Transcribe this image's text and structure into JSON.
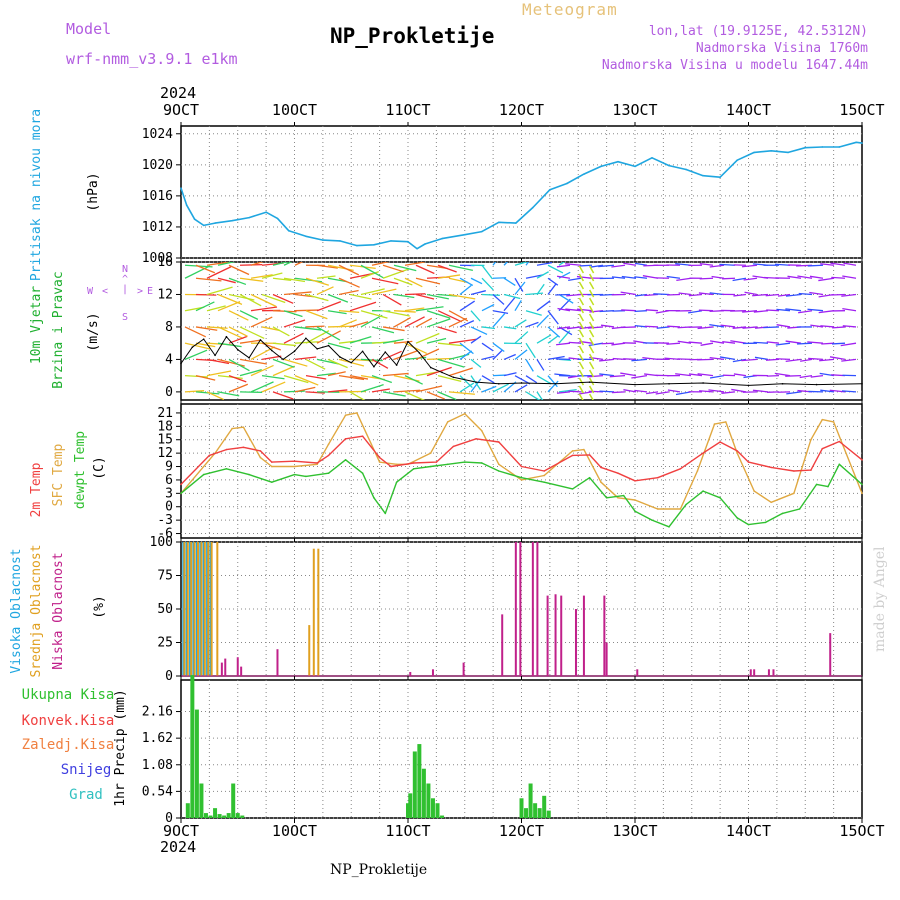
{
  "header": {
    "model_label": "Model",
    "model_name": "wrf-nmm_v3.9.1 e1km",
    "meteogram_label": "Meteogram",
    "station": "NP_Prokletije",
    "lonlat": "lon,lat (19.9125E, 42.5312N)",
    "elevation": "Nadmorska Visina 1760m",
    "model_elevation": "Nadmorska Visina u modelu 1647.44m"
  },
  "footer": {
    "station": "NP_Prokletije",
    "credit": "made by Angel"
  },
  "colors": {
    "pressure": "#1fa6e0",
    "temp": "#f04040",
    "sfc_temp": "#e0a840",
    "dewpt": "#30c030",
    "high_cloud": "#1fa6e0",
    "mid_cloud": "#e0a020",
    "low_cloud": "#c0208a",
    "precip_total": "#30c030",
    "conv": "#f04040",
    "frozen": "#f08040",
    "snow": "#4040e0",
    "graupel": "#30c0c0",
    "wind_label": "#20b030",
    "axis": "#000000",
    "wind_dir_label": "#b25ce0"
  },
  "time_axis": {
    "year": "2024",
    "top_ticks": [
      "9OCT",
      "10OCT",
      "11OCT",
      "12OCT",
      "13OCT",
      "14OCT",
      "15OCT"
    ],
    "bottom_ticks": [
      "9OCT",
      "10OCT",
      "11OCT",
      "12OCT",
      "13OCT",
      "14OCT",
      "15OCT"
    ]
  },
  "panels": {
    "pressure": {
      "label": "Pritisak na nivou mora",
      "unit": "(hPa)"
    },
    "wind": {
      "label1": "10m Vjetar",
      "label2": "Brzina i Pravac",
      "unit": "(m/s)",
      "compass": [
        "N",
        "^",
        "|",
        "<",
        "W",
        "E",
        ">",
        "S"
      ]
    },
    "temp": {
      "label_temp": "2m Temp",
      "label_sfc": "SFC Temp",
      "label_dewpt": "dewpt Temp",
      "unit": "(C)"
    },
    "cloud": {
      "label_high": "Visoka Oblacnost",
      "label_mid": "Srednja Oblacnost",
      "label_low": "Niska Oblacnost",
      "unit": "(%)"
    },
    "precip": {
      "label_total": "Ukupna Kisa",
      "label_conv": "Konvek.Kisa",
      "label_frozen": "Zaledj.Kisa",
      "label_snow": "Snijeg",
      "label_grad": "Grad",
      "axis_label": "1hr Precip (mm)"
    }
  },
  "chart_data": [
    {
      "type": "line",
      "title": "Pritisak na nivou mora",
      "ylabel": "(hPa)",
      "ylim": [
        1008,
        1025
      ],
      "yticks": [
        "1008",
        "1012",
        "1016",
        "1020",
        "1024"
      ],
      "x_unit": "days after 9 OCT 2024 00UTC",
      "series": [
        {
          "name": "pressure",
          "x": [
            0,
            0.05,
            0.12,
            0.2,
            0.3,
            0.45,
            0.6,
            0.75,
            0.85,
            0.95,
            1.1,
            1.25,
            1.4,
            1.55,
            1.7,
            1.85,
            2.0,
            2.08,
            2.15,
            2.3,
            2.5,
            2.65,
            2.8,
            2.95,
            3.1,
            3.25,
            3.4,
            3.55,
            3.7,
            3.85,
            4.0,
            4.15,
            4.3,
            4.45,
            4.6,
            4.75,
            4.9,
            5.05,
            5.2,
            5.35,
            5.5,
            5.65,
            5.8,
            5.95,
            6.0
          ],
          "y": [
            1017,
            1014.8,
            1013,
            1012.2,
            1012.5,
            1012.8,
            1013.2,
            1013.9,
            1013.1,
            1011.5,
            1010.8,
            1010.3,
            1010.2,
            1009.6,
            1009.7,
            1010.2,
            1010.1,
            1009.2,
            1009.8,
            1010.5,
            1011,
            1011.4,
            1012.6,
            1012.5,
            1014.5,
            1016.8,
            1017.6,
            1018.8,
            1019.8,
            1020.4,
            1019.8,
            1020.9,
            1019.9,
            1019.4,
            1018.6,
            1018.4,
            1020.6,
            1021.6,
            1021.8,
            1021.6,
            1022.2,
            1022.3,
            1022.3,
            1022.9,
            1022.8
          ]
        }
      ]
    },
    {
      "type": "line",
      "title": "10m Vjetar Brzina i Pravac",
      "ylabel": "(m/s)",
      "ylim": [
        -1,
        16
      ],
      "yticks": [
        "0",
        "4",
        "8",
        "12",
        "16"
      ],
      "x_unit": "days after 9 OCT 2024 00UTC",
      "series": [
        {
          "name": "speed",
          "x": [
            0,
            0.1,
            0.2,
            0.3,
            0.4,
            0.5,
            0.6,
            0.7,
            0.8,
            0.9,
            1.0,
            1.1,
            1.2,
            1.3,
            1.4,
            1.5,
            1.6,
            1.7,
            1.8,
            1.9,
            2.0,
            2.1,
            2.2,
            2.3,
            2.4,
            2.6,
            2.8,
            3.0,
            3.3,
            3.6,
            4.0,
            4.3,
            4.6,
            5.0,
            5.3,
            5.6,
            6.0
          ],
          "y": [
            3.5,
            5.5,
            6.5,
            4.5,
            6.8,
            5.2,
            4.2,
            6.4,
            5.1,
            4.0,
            5.0,
            6.6,
            5.3,
            5.7,
            4.3,
            3.6,
            5.0,
            3.1,
            4.9,
            3.3,
            6.2,
            4.8,
            3.0,
            2.4,
            1.8,
            1.2,
            1.0,
            1.1,
            1.0,
            1.2,
            0.9,
            1.0,
            1.1,
            0.8,
            1.0,
            0.9,
            1.0
          ]
        }
      ]
    },
    {
      "type": "line",
      "title": "Temp",
      "ylabel": "(C)",
      "ylim": [
        -7,
        23
      ],
      "yticks": [
        "-6",
        "-3",
        "0",
        "3",
        "6",
        "9",
        "12",
        "15",
        "18",
        "21"
      ],
      "x_unit": "days after 9 OCT 2024 00UTC",
      "series": [
        {
          "name": "2m Temp",
          "x": [
            0,
            0.25,
            0.4,
            0.55,
            0.7,
            0.8,
            1.0,
            1.2,
            1.3,
            1.45,
            1.6,
            1.75,
            1.85,
            2.05,
            2.25,
            2.4,
            2.6,
            2.8,
            3.0,
            3.2,
            3.45,
            3.6,
            3.7,
            3.85,
            4.0,
            4.2,
            4.4,
            4.6,
            4.75,
            4.9,
            5.0,
            5.2,
            5.4,
            5.55,
            5.65,
            5.8,
            6.0
          ],
          "y": [
            5,
            11.5,
            12.8,
            13.3,
            12.5,
            10,
            10.2,
            9.8,
            11.5,
            15.2,
            15.8,
            11,
            9,
            9.8,
            10,
            13.5,
            15.2,
            14.5,
            9,
            8,
            11.5,
            11.6,
            8.8,
            7.5,
            5.8,
            6.5,
            8.5,
            12,
            14.5,
            12.5,
            10,
            8.8,
            8,
            8.2,
            13,
            14.6,
            10.5
          ]
        },
        {
          "name": "SFC Temp",
          "x": [
            0,
            0.3,
            0.45,
            0.55,
            0.7,
            0.8,
            1.0,
            1.2,
            1.3,
            1.45,
            1.55,
            1.75,
            1.9,
            2.0,
            2.2,
            2.35,
            2.5,
            2.65,
            2.8,
            3.0,
            3.2,
            3.45,
            3.55,
            3.7,
            3.85,
            4.0,
            4.2,
            4.4,
            4.55,
            4.7,
            4.8,
            4.9,
            5.05,
            5.2,
            5.4,
            5.55,
            5.65,
            5.75,
            6.0
          ],
          "y": [
            3,
            12,
            17.5,
            17.8,
            11,
            9,
            9,
            9.5,
            14,
            20.5,
            21,
            10,
            9.5,
            9.5,
            12,
            19,
            20.8,
            17,
            9.5,
            6,
            7,
            12.5,
            12.8,
            5.5,
            2,
            1.5,
            -0.5,
            -0.5,
            8,
            18.5,
            19,
            12,
            3.5,
            1,
            3,
            15,
            19.5,
            19,
            3
          ]
        },
        {
          "name": "dewpt Temp",
          "x": [
            0,
            0.2,
            0.4,
            0.6,
            0.8,
            1.0,
            1.1,
            1.3,
            1.45,
            1.6,
            1.7,
            1.8,
            1.9,
            2.05,
            2.2,
            2.35,
            2.5,
            2.65,
            2.8,
            3.0,
            3.2,
            3.45,
            3.6,
            3.75,
            3.9,
            4.0,
            4.15,
            4.3,
            4.45,
            4.6,
            4.75,
            4.9,
            5.0,
            5.15,
            5.3,
            5.45,
            5.6,
            5.7,
            5.8,
            6.0
          ],
          "y": [
            3,
            7.2,
            8.5,
            7.2,
            5.5,
            7.2,
            6.8,
            7.5,
            10.5,
            7.5,
            2,
            -1.5,
            5.5,
            8.5,
            9,
            9.5,
            10,
            9.8,
            8,
            6.5,
            5.5,
            4,
            6.5,
            2,
            2.5,
            -1,
            -3,
            -4.5,
            0.5,
            3.5,
            2,
            -2.5,
            -4,
            -3.5,
            -1.5,
            -0.5,
            5,
            4.5,
            9.5,
            5
          ]
        }
      ]
    },
    {
      "type": "bar",
      "title": "Oblacnost",
      "ylabel": "(%)",
      "ylim": [
        0,
        100
      ],
      "yticks": [
        "0",
        "25",
        "50",
        "75",
        "100"
      ],
      "x_unit": "days after 9 OCT 2024 00UTC",
      "series": [
        {
          "name": "Visoka Oblacnost",
          "x": [
            0.02,
            0.05,
            0.08,
            0.11,
            0.14,
            0.17,
            0.2,
            0.23,
            0.26
          ],
          "y": [
            100,
            100,
            100,
            100,
            100,
            100,
            100,
            100,
            100
          ]
        },
        {
          "name": "Srednja Oblacnost",
          "x": [
            0.03,
            0.06,
            0.09,
            0.12,
            0.15,
            0.18,
            0.21,
            0.24,
            0.27,
            0.32,
            1.13,
            1.17,
            1.21
          ],
          "y": [
            100,
            100,
            100,
            100,
            100,
            100,
            100,
            100,
            100,
            100,
            38,
            95,
            95
          ]
        },
        {
          "name": "Niska Oblacnost",
          "x": [
            0.36,
            0.39,
            0.5,
            0.53,
            0.85,
            2.02,
            2.22,
            2.49,
            2.83,
            2.95,
            2.99,
            3.1,
            3.14,
            3.23,
            3.3,
            3.35,
            3.48,
            3.55,
            3.73,
            3.75,
            4.02,
            5.02,
            5.05,
            5.18,
            5.22,
            5.72
          ],
          "y": [
            10,
            13,
            14,
            7,
            20,
            3,
            5,
            10,
            46,
            100,
            100,
            100,
            100,
            60,
            61,
            60,
            50,
            60,
            60,
            25,
            5,
            5,
            5,
            5,
            5,
            32
          ]
        }
      ]
    },
    {
      "type": "bar",
      "title": "1hr Precip",
      "ylabel": "1hr Precip (mm)",
      "ylim": [
        0,
        2.8
      ],
      "yticks": [
        "0",
        "0.54",
        "1.08",
        "1.62",
        "2.16"
      ],
      "x_unit": "days after 9 OCT 2024 00UTC",
      "series": [
        {
          "name": "Ukupna Kisa",
          "x": [
            0.06,
            0.1,
            0.14,
            0.18,
            0.22,
            0.26,
            0.3,
            0.34,
            0.38,
            0.42,
            0.46,
            0.5,
            0.54,
            2.0,
            2.02,
            2.06,
            2.1,
            2.14,
            2.18,
            2.22,
            2.26,
            2.3,
            3.0,
            3.04,
            3.08,
            3.12,
            3.16,
            3.2,
            3.24
          ],
          "y": [
            0.3,
            2.9,
            2.2,
            0.7,
            0.1,
            0.05,
            0.2,
            0.08,
            0.05,
            0.1,
            0.7,
            0.1,
            0.05,
            0.3,
            0.5,
            1.35,
            1.5,
            1.0,
            0.7,
            0.4,
            0.3,
            0.05,
            0.4,
            0.2,
            0.7,
            0.3,
            0.2,
            0.45,
            0.15
          ]
        }
      ]
    }
  ]
}
